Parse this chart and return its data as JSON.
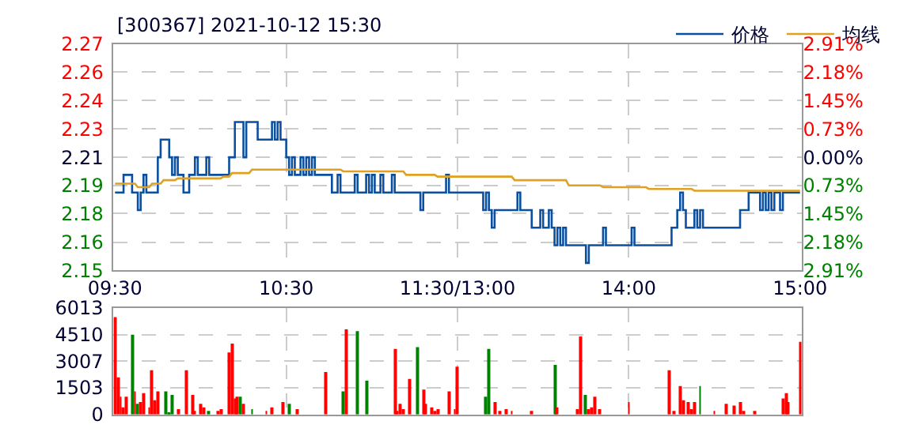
{
  "chart_data": [
    {
      "type": "line",
      "title": "[300367] 2021-10-12 15:30",
      "legend": "top right",
      "grid": true,
      "categories": [
        "09:30",
        null,
        null,
        null,
        null,
        null,
        null,
        null,
        null,
        null,
        null,
        null,
        null,
        null,
        null,
        null,
        null,
        null,
        null,
        null,
        null,
        null,
        null,
        null,
        null,
        null,
        null,
        null,
        null,
        null,
        null,
        null,
        null,
        null,
        null,
        null,
        null,
        null,
        null,
        null,
        null,
        null,
        null,
        null,
        null,
        null,
        null,
        null,
        null,
        null,
        null,
        null,
        null,
        null,
        null,
        null,
        null,
        null,
        null,
        null,
        "10:30",
        null,
        null,
        null,
        null,
        null,
        null,
        null,
        null,
        null,
        null,
        null,
        null,
        null,
        null,
        null,
        null,
        null,
        null,
        null,
        null,
        null,
        null,
        null,
        null,
        null,
        null,
        null,
        null,
        null,
        null,
        null,
        null,
        null,
        null,
        null,
        null,
        null,
        null,
        null,
        null,
        null,
        null,
        null,
        null,
        null,
        null,
        null,
        null,
        null,
        null,
        null,
        null,
        null,
        null,
        null,
        null,
        null,
        null,
        null,
        "11:30/13:00",
        null,
        null,
        null,
        null,
        null,
        null,
        null,
        null,
        null,
        null,
        null,
        null,
        null,
        null,
        null,
        null,
        null,
        null,
        null,
        null,
        null,
        null,
        null,
        null,
        null,
        null,
        null,
        null,
        null,
        null,
        null,
        null,
        null,
        null,
        null,
        null,
        null,
        null,
        null,
        null,
        null,
        null,
        null,
        null,
        null,
        null,
        null,
        null,
        null,
        null,
        null,
        null,
        null,
        null,
        null,
        null,
        null,
        null,
        null,
        "14:00",
        null,
        null,
        null,
        null,
        null,
        null,
        null,
        null,
        null,
        null,
        null,
        null,
        null,
        null,
        null,
        null,
        null,
        null,
        null,
        null,
        null,
        null,
        null,
        null,
        null,
        null,
        null,
        null,
        null,
        null,
        null,
        null,
        null,
        null,
        null,
        null,
        null,
        null,
        null,
        null,
        null,
        null,
        null,
        null,
        null,
        null,
        null,
        null,
        null,
        null,
        null,
        null,
        null,
        null,
        null,
        null,
        null,
        null,
        null,
        "15:00"
      ],
      "ylim": [
        2.1457,
        2.2743
      ],
      "yticks": [
        {
          "value": 2.1457,
          "label": "2.15"
        },
        {
          "value": 2.1618,
          "label": "2.16"
        },
        {
          "value": 2.178,
          "label": "2.18"
        },
        {
          "value": 2.1939,
          "label": "2.19"
        },
        {
          "value": 2.21,
          "label": "2.21"
        },
        {
          "value": 2.2261,
          "label": "2.23"
        },
        {
          "value": 2.2422,
          "label": "2.24"
        },
        {
          "value": 2.2583,
          "label": "2.26"
        },
        {
          "value": 2.2743,
          "label": "2.27"
        }
      ],
      "y2lim": [
        -2.91,
        2.91
      ],
      "y2ticks": [
        {
          "value": -2.91,
          "label": "2.91%"
        },
        {
          "value": -2.18,
          "label": "2.18%"
        },
        {
          "value": -1.45,
          "label": "1.45%"
        },
        {
          "value": -0.73,
          "label": "0.73%"
        },
        {
          "value": 0,
          "label": "0.00%"
        },
        {
          "value": 0.73,
          "label": "0.73%"
        },
        {
          "value": 1.45,
          "label": "1.45%"
        },
        {
          "value": 2.18,
          "label": "2.18%"
        },
        {
          "value": 2.91,
          "label": "2.91%"
        }
      ],
      "series": [
        {
          "name": "价格",
          "type": "step",
          "color": "#0b4fa0",
          "values": [
            2.19,
            2.19,
            2.19,
            2.2,
            2.2,
            2.2,
            2.19,
            2.19,
            2.18,
            2.19,
            2.2,
            2.19,
            2.19,
            2.19,
            2.19,
            2.21,
            2.22,
            2.22,
            2.22,
            2.21,
            2.2,
            2.21,
            2.2,
            2.2,
            2.19,
            2.19,
            2.2,
            2.2,
            2.21,
            2.2,
            2.2,
            2.2,
            2.21,
            2.2,
            2.2,
            2.2,
            2.2,
            2.2,
            2.2,
            2.2,
            2.21,
            2.21,
            2.23,
            2.23,
            2.23,
            2.21,
            2.23,
            2.23,
            2.23,
            2.23,
            2.22,
            2.22,
            2.22,
            2.22,
            2.22,
            2.23,
            2.22,
            2.23,
            2.22,
            2.22,
            2.21,
            2.2,
            2.21,
            2.2,
            2.2,
            2.21,
            2.2,
            2.21,
            2.2,
            2.21,
            2.2,
            2.2,
            2.2,
            2.2,
            2.2,
            2.2,
            2.19,
            2.19,
            2.2,
            2.19,
            2.19,
            2.19,
            2.19,
            2.19,
            2.2,
            2.19,
            2.19,
            2.19,
            2.2,
            2.19,
            2.2,
            2.19,
            2.19,
            2.2,
            2.19,
            2.19,
            2.19,
            2.2,
            2.19,
            2.19,
            2.19,
            2.19,
            2.19,
            2.19,
            2.19,
            2.19,
            2.19,
            2.18,
            2.19,
            2.19,
            2.19,
            2.19,
            2.19,
            2.19,
            2.19,
            2.19,
            2.2,
            2.19,
            2.19,
            2.19,
            2.19,
            2.19,
            2.19,
            2.19,
            2.19,
            2.19,
            2.19,
            2.19,
            2.19,
            2.18,
            2.19,
            2.18,
            2.17,
            2.18,
            2.18,
            2.18,
            2.18,
            2.18,
            2.18,
            2.18,
            2.18,
            2.19,
            2.18,
            2.18,
            2.18,
            2.18,
            2.17,
            2.17,
            2.17,
            2.18,
            2.17,
            2.17,
            2.18,
            2.17,
            2.16,
            2.17,
            2.16,
            2.17,
            2.16,
            2.16,
            2.16,
            2.16,
            2.16,
            2.16,
            2.16,
            2.15,
            2.16,
            2.16,
            2.16,
            2.16,
            2.16,
            2.17,
            2.16,
            2.16,
            2.16,
            2.16,
            2.16,
            2.16,
            2.16,
            2.16,
            2.16,
            2.17,
            2.16,
            2.16,
            2.16,
            2.16,
            2.16,
            2.16,
            2.16,
            2.16,
            2.16,
            2.16,
            2.16,
            2.16,
            2.16,
            2.17,
            2.17,
            2.18,
            2.19,
            2.18,
            2.17,
            2.17,
            2.17,
            2.18,
            2.17,
            2.18,
            2.17,
            2.17,
            2.17,
            2.17,
            2.17,
            2.17,
            2.17,
            2.17,
            2.17,
            2.17,
            2.17,
            2.17,
            2.17,
            2.18,
            2.18,
            2.18,
            2.19,
            2.19,
            2.19,
            2.19,
            2.18,
            2.19,
            2.18,
            2.19,
            2.18,
            2.19,
            2.19,
            2.18,
            2.19,
            2.19,
            2.19,
            2.19,
            2.19,
            2.19,
            2.19
          ]
        },
        {
          "name": "均线",
          "type": "line",
          "color": "#e0a020",
          "values": [
            2.195,
            2.195,
            2.195,
            2.195,
            2.195,
            2.195,
            2.195,
            2.195,
            2.193,
            2.193,
            2.193,
            2.193,
            2.193,
            2.195,
            2.195,
            2.195,
            2.195,
            2.197,
            2.197,
            2.197,
            2.197,
            2.197,
            2.198,
            2.198,
            2.198,
            2.198,
            2.198,
            2.198,
            2.198,
            2.198,
            2.198,
            2.198,
            2.198,
            2.198,
            2.198,
            2.198,
            2.198,
            2.198,
            2.199,
            2.199,
            2.199,
            2.201,
            2.201,
            2.201,
            2.201,
            2.201,
            2.201,
            2.201,
            2.203,
            2.203,
            2.203,
            2.203,
            2.203,
            2.203,
            2.203,
            2.203,
            2.203,
            2.203,
            2.203,
            2.203,
            2.203,
            2.203,
            2.203,
            2.203,
            2.203,
            2.203,
            2.203,
            2.203,
            2.203,
            2.203,
            2.203,
            2.203,
            2.203,
            2.203,
            2.203,
            2.203,
            2.203,
            2.203,
            2.203,
            2.203,
            2.202,
            2.202,
            2.202,
            2.202,
            2.202,
            2.202,
            2.202,
            2.202,
            2.202,
            2.202,
            2.202,
            2.202,
            2.202,
            2.202,
            2.202,
            2.202,
            2.202,
            2.202,
            2.202,
            2.202,
            2.202,
            2.202,
            2.2,
            2.2,
            2.2,
            2.2,
            2.2,
            2.2,
            2.2,
            2.2,
            2.2,
            2.2,
            2.2,
            2.199,
            2.199,
            2.199,
            2.199,
            2.199,
            2.199,
            2.199,
            2.199,
            2.199,
            2.199,
            2.199,
            2.199,
            2.199,
            2.199,
            2.199,
            2.199,
            2.199,
            2.199,
            2.199,
            2.199,
            2.199,
            2.199,
            2.199,
            2.199,
            2.199,
            2.199,
            2.199,
            2.197,
            2.197,
            2.197,
            2.197,
            2.197,
            2.197,
            2.197,
            2.197,
            2.197,
            2.197,
            2.197,
            2.197,
            2.197,
            2.197,
            2.197,
            2.197,
            2.197,
            2.197,
            2.197,
            2.194,
            2.194,
            2.194,
            2.194,
            2.194,
            2.194,
            2.194,
            2.194,
            2.194,
            2.194,
            2.194,
            2.194,
            2.193,
            2.193,
            2.193,
            2.193,
            2.193,
            2.193,
            2.193,
            2.193,
            2.193,
            2.193,
            2.193,
            2.193,
            2.193,
            2.193,
            2.193,
            2.193,
            2.192,
            2.192,
            2.192,
            2.192,
            2.192,
            2.192,
            2.192,
            2.192,
            2.192,
            2.192,
            2.192,
            2.192,
            2.192,
            2.192,
            2.192,
            2.192,
            2.191,
            2.191,
            2.191,
            2.191,
            2.191,
            2.191,
            2.191,
            2.191,
            2.191,
            2.191,
            2.191,
            2.191,
            2.191,
            2.191,
            2.191,
            2.191,
            2.191,
            2.191,
            2.191,
            2.191,
            2.191,
            2.191,
            2.191,
            2.191,
            2.191,
            2.191,
            2.191,
            2.191,
            2.191,
            2.191,
            2.191,
            2.191,
            2.191,
            2.191,
            2.191,
            2.191,
            2.191,
            2.191
          ]
        }
      ]
    },
    {
      "type": "bar",
      "grid": true,
      "tick_labels": "y",
      "categories": [
        null,
        null,
        null,
        null,
        null,
        null,
        null,
        null,
        null,
        null,
        null,
        null,
        null,
        null,
        null,
        null,
        null,
        null,
        null,
        null,
        null,
        null,
        null,
        null,
        null,
        null,
        null,
        null,
        null,
        null,
        null,
        null,
        null,
        null,
        null,
        null,
        null,
        null,
        null,
        null,
        null,
        null,
        null,
        null,
        null,
        null,
        null,
        null,
        null,
        null,
        null,
        null,
        null,
        null,
        null,
        null,
        null,
        null,
        null,
        null,
        null,
        null,
        null,
        null,
        null,
        null,
        null,
        null,
        null,
        null,
        null,
        null,
        null,
        null,
        null,
        null,
        null,
        null,
        null,
        null,
        null,
        null,
        null,
        null,
        null,
        null,
        null,
        null,
        null,
        null,
        null,
        null,
        null,
        null,
        null,
        null,
        null,
        null,
        null,
        null,
        null,
        null,
        null,
        null,
        null,
        null,
        null,
        null,
        null,
        null,
        null,
        null,
        null,
        null,
        null,
        null,
        null,
        null,
        null,
        null,
        null,
        null,
        null,
        null,
        null,
        null,
        null,
        null,
        null,
        null,
        null,
        null,
        null,
        null,
        null,
        null,
        null,
        null,
        null,
        null,
        null,
        null,
        null,
        null,
        null,
        null,
        null,
        null,
        null,
        null,
        null,
        null,
        null,
        null,
        null,
        null,
        null,
        null,
        null,
        null,
        null,
        null,
        null,
        null,
        null,
        null,
        null,
        null,
        null,
        null,
        null,
        null,
        null,
        null,
        null,
        null,
        null,
        null,
        null,
        null,
        null,
        null,
        null,
        null,
        null,
        null,
        null,
        null,
        null,
        null,
        null,
        null,
        null,
        null,
        null,
        null,
        null,
        null,
        null,
        null,
        null,
        null,
        null,
        null,
        null,
        null,
        null,
        null,
        null,
        null,
        null,
        null,
        null,
        null,
        null,
        null,
        null,
        null,
        null,
        null,
        null,
        null,
        null,
        null,
        null,
        null,
        null,
        null,
        null,
        null,
        null,
        null,
        null,
        null,
        null,
        null,
        null,
        null,
        null,
        null,
        null
      ],
      "ylim": [
        0,
        6013
      ],
      "yticks": [
        0,
        1503,
        3007,
        4510,
        6013
      ],
      "values": [
        5500,
        2100,
        1000,
        400,
        1000,
        null,
        4500,
        1300,
        600,
        700,
        1200,
        null,
        400,
        2500,
        800,
        1300,
        null,
        null,
        1300,
        100,
        1100,
        null,
        300,
        null,
        null,
        2500,
        null,
        1100,
        200,
        null,
        600,
        400,
        null,
        200,
        null,
        null,
        200,
        300,
        null,
        null,
        3500,
        4000,
        900,
        1000,
        1000,
        600,
        null,
        null,
        300,
        null,
        null,
        null,
        null,
        200,
        null,
        400,
        null,
        null,
        null,
        700,
        null,
        600,
        null,
        null,
        300,
        null,
        null,
        null,
        null,
        null,
        null,
        null,
        null,
        null,
        2400,
        null,
        null,
        null,
        null,
        null,
        1300,
        4800,
        null,
        null,
        null,
        4700,
        null,
        null,
        1900,
        null,
        null,
        null,
        null,
        null,
        null,
        null,
        null,
        null,
        3700,
        200,
        600,
        300,
        null,
        2000,
        null,
        null,
        3800,
        null,
        1400,
        600,
        null,
        400,
        200,
        300,
        null,
        null,
        null,
        1300,
        null,
        300,
        2700,
        null,
        null,
        null,
        null,
        null,
        null,
        null,
        null,
        null,
        1000,
        3700,
        null,
        700,
        null,
        200,
        null,
        300,
        null,
        200,
        null,
        null,
        null,
        null,
        null,
        null,
        200,
        null,
        null,
        null,
        null,
        null,
        null,
        null,
        2800,
        400,
        null,
        null,
        null,
        null,
        null,
        null,
        300,
        4400,
        null,
        1100,
        300,
        400,
        1000,
        null,
        300,
        null,
        null,
        null,
        null,
        null,
        null,
        null,
        null,
        null,
        700,
        null,
        null,
        null,
        null,
        null,
        null,
        null,
        null,
        null,
        null,
        null,
        null,
        null,
        2500,
        null,
        200,
        null,
        1600,
        800,
        null,
        700,
        300,
        700,
        null,
        1600,
        null,
        null,
        null,
        null,
        200,
        null,
        null,
        null,
        600,
        null,
        null,
        500,
        null,
        700,
        200,
        null,
        null,
        null,
        200,
        null,
        null,
        null,
        null,
        null,
        null,
        null,
        null,
        null,
        900,
        1200,
        700,
        null,
        null,
        null,
        4100
      ],
      "colors": [
        "#ff0000",
        "#ff0000",
        "#ff0000",
        "#ff0000",
        "#ff0000",
        "#ff0000",
        "#008000",
        "#ff0000",
        "#008000",
        "#ff0000",
        "#ff0000",
        "#ff0000",
        "#ff0000",
        "#ff0000",
        "#ff0000",
        "#ff0000",
        "#ff0000",
        "#ff0000",
        "#008000",
        "#008000",
        "#008000",
        "#ff0000",
        "#ff0000",
        "#ff0000",
        "#ff0000",
        "#ff0000",
        "#ff0000",
        "#ff0000",
        "#ff0000",
        "#ff0000",
        "#ff0000",
        "#ff0000",
        "#ff0000",
        "#008000",
        "#ff0000",
        "#ff0000",
        "#ff0000",
        "#ff0000",
        "#ff0000",
        "#ff0000",
        "#ff0000",
        "#ff0000",
        "#ff0000",
        "#ff0000",
        "#008000",
        "#ff0000",
        "#ff0000",
        "#ff0000",
        "#008000",
        "#ff0000",
        "#ff0000",
        "#ff0000",
        "#ff0000",
        "#ff0000",
        "#ff0000",
        "#ff0000",
        "#ff0000",
        "#ff0000",
        "#ff0000",
        "#ff0000",
        "#ff0000",
        "#008000",
        "#ff0000",
        "#ff0000",
        "#ff0000",
        "#ff0000",
        "#ff0000",
        "#ff0000",
        "#ff0000",
        "#ff0000",
        "#ff0000",
        "#ff0000",
        "#ff0000",
        "#ff0000",
        "#ff0000",
        "#ff0000",
        "#ff0000",
        "#ff0000",
        "#ff0000",
        "#ff0000",
        "#008000",
        "#ff0000",
        "#ff0000",
        "#ff0000",
        "#ff0000",
        "#008000",
        "#ff0000",
        "#ff0000",
        "#008000",
        "#ff0000",
        "#ff0000",
        "#ff0000",
        "#ff0000",
        "#ff0000",
        "#ff0000",
        "#ff0000",
        "#ff0000",
        "#ff0000",
        "#ff0000",
        "#ff0000",
        "#ff0000",
        "#ff0000",
        "#ff0000",
        "#ff0000",
        "#ff0000",
        "#ff0000",
        "#008000",
        "#ff0000",
        "#ff0000",
        "#ff0000",
        "#ff0000",
        "#ff0000",
        "#ff0000",
        "#ff0000",
        "#ff0000",
        "#ff0000",
        "#ff0000",
        "#ff0000",
        "#ff0000",
        "#ff0000",
        "#ff0000",
        "#ff0000",
        "#ff0000",
        "#ff0000",
        "#ff0000",
        "#ff0000",
        "#ff0000",
        "#ff0000",
        "#ff0000",
        "#ff0000",
        "#008000",
        "#008000",
        "#ff0000",
        "#ff0000",
        "#ff0000",
        "#ff0000",
        "#ff0000",
        "#ff0000",
        "#ff0000",
        "#ff0000",
        "#ff0000",
        "#ff0000",
        "#ff0000",
        "#ff0000",
        "#ff0000",
        "#ff0000",
        "#ff0000",
        "#ff0000",
        "#ff0000",
        "#ff0000",
        "#ff0000",
        "#ff0000",
        "#ff0000",
        "#ff0000",
        "#008000",
        "#ff0000",
        "#ff0000",
        "#ff0000",
        "#ff0000",
        "#ff0000",
        "#ff0000",
        "#ff0000",
        "#ff0000",
        "#ff0000",
        "#ff0000",
        "#008000",
        "#ff0000",
        "#ff0000",
        "#ff0000",
        "#ff0000",
        "#ff0000",
        "#ff0000",
        "#ff0000",
        "#ff0000",
        "#ff0000",
        "#ff0000",
        "#ff0000",
        "#ff0000",
        "#ff0000",
        "#ff0000",
        "#ff0000",
        "#ff0000",
        "#ff0000",
        "#ff0000",
        "#ff0000",
        "#ff0000",
        "#ff0000",
        "#ff0000",
        "#ff0000",
        "#ff0000",
        "#ff0000",
        "#ff0000",
        "#ff0000",
        "#ff0000",
        "#ff0000",
        "#ff0000",
        "#ff0000",
        "#ff0000",
        "#ff0000",
        "#ff0000",
        "#ff0000",
        "#ff0000",
        "#ff0000",
        "#ff0000",
        "#ff0000",
        "#008000",
        "#ff0000",
        "#ff0000",
        "#ff0000",
        "#ff0000",
        "#ff0000",
        "#ff0000",
        "#ff0000",
        "#ff0000",
        "#ff0000",
        "#ff0000",
        "#ff0000",
        "#ff0000",
        "#ff0000",
        "#ff0000",
        "#ff0000",
        "#ff0000",
        "#ff0000",
        "#ff0000",
        "#ff0000",
        "#ff0000",
        "#ff0000",
        "#ff0000",
        "#ff0000",
        "#ff0000",
        "#ff0000",
        "#ff0000",
        "#ff0000",
        "#ff0000",
        "#ff0000",
        "#ff0000",
        "#ff0000",
        "#ff0000",
        "#ff0000",
        "#ff0000",
        "#ff0000"
      ]
    }
  ]
}
